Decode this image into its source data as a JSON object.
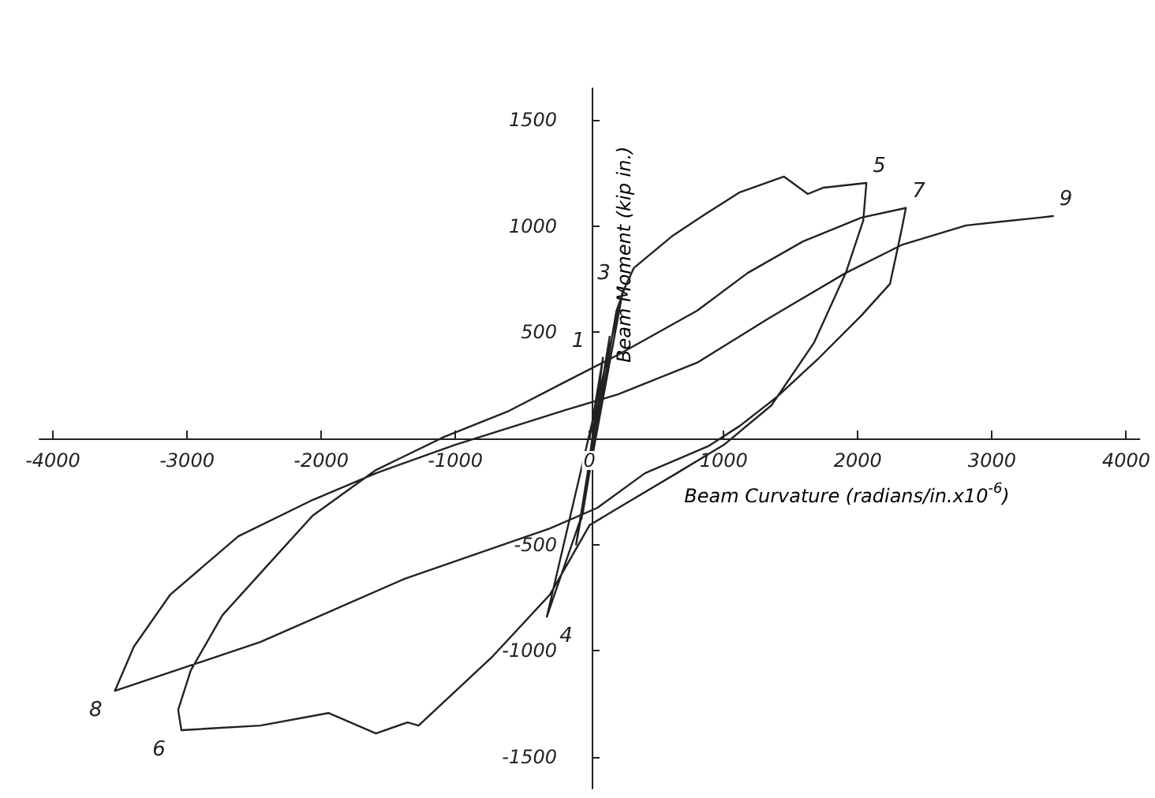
{
  "chart_data": {
    "type": "line",
    "xlabel": "Beam Curvature (radians/in.x10$^{-6}$)",
    "ylabel": "Beam Moment (kip in.)",
    "series": [
      {
        "color": "#222222",
        "x": [
          0,
          100,
          -60,
          150,
          -100,
          250,
          -318,
          -50,
          200,
          260,
          330,
          613,
          861,
          1120,
          1450,
          1627,
          1745,
          2064,
          2040,
          1910,
          1675,
          1356,
          1002,
          650,
          295,
          0,
          -295,
          -731,
          -1274,
          -1356,
          -1592,
          -1946,
          -2453,
          -3042,
          -3066,
          -2972,
          -2736,
          -2417,
          -2064,
          -1592,
          -1085,
          -600,
          -177,
          212,
          802,
          1179,
          1592,
          2028,
          2358,
          2323,
          2240,
          2028,
          1710,
          1392,
          1120,
          884,
          413,
          59,
          -295,
          -1380,
          -2453,
          -3538,
          -3396,
          -3125,
          -2618,
          -2064,
          -1592,
          -1002,
          -177,
          212,
          802,
          1333,
          1910,
          2335,
          2807,
          3361,
          3455
        ],
        "values": [
          0,
          380,
          -380,
          480,
          -500,
          700,
          -840,
          -350,
          600,
          706,
          803,
          952,
          1056,
          1160,
          1234,
          1152,
          1182,
          1204,
          1026,
          780,
          453,
          156,
          -30,
          -164,
          -297,
          -409,
          -736,
          -1033,
          -1353,
          -1338,
          -1390,
          -1294,
          -1353,
          -1375,
          -1279,
          -1093,
          -833,
          -610,
          -364,
          -149,
          7,
          130,
          268,
          394,
          602,
          780,
          929,
          1041,
          1086,
          974,
          729,
          580,
          379,
          193,
          59,
          -37,
          -164,
          -327,
          -424,
          -662,
          -959,
          -1190,
          -981,
          -736,
          -461,
          -290,
          -164,
          -30,
          134,
          208,
          357,
          565,
          780,
          914,
          1004,
          1041,
          1048
        ]
      }
    ],
    "xlim": [
      -4100,
      4100
    ],
    "ylim": [
      -1650,
      1650
    ],
    "xticks": [
      -4000,
      -3000,
      -2000,
      -1000,
      0,
      1000,
      2000,
      3000,
      4000
    ],
    "yticks": [
      -1500,
      -1000,
      -500,
      500,
      1000,
      1500
    ],
    "grid": false,
    "marker": "none",
    "line_style": "solid",
    "annotations": [
      {
        "text": "1",
        "x": 100,
        "y": 380
      },
      {
        "text": "3",
        "x": 250,
        "y": 700
      },
      {
        "text": "4",
        "x": -318,
        "y": -840
      },
      {
        "text": "5",
        "x": 2064,
        "y": 1204
      },
      {
        "text": "6",
        "x": -3066,
        "y": -1375
      },
      {
        "text": "7",
        "x": 2358,
        "y": 1086
      },
      {
        "text": "8",
        "x": -3538,
        "y": -1190
      },
      {
        "text": "9",
        "x": 3455,
        "y": 1048
      }
    ]
  }
}
